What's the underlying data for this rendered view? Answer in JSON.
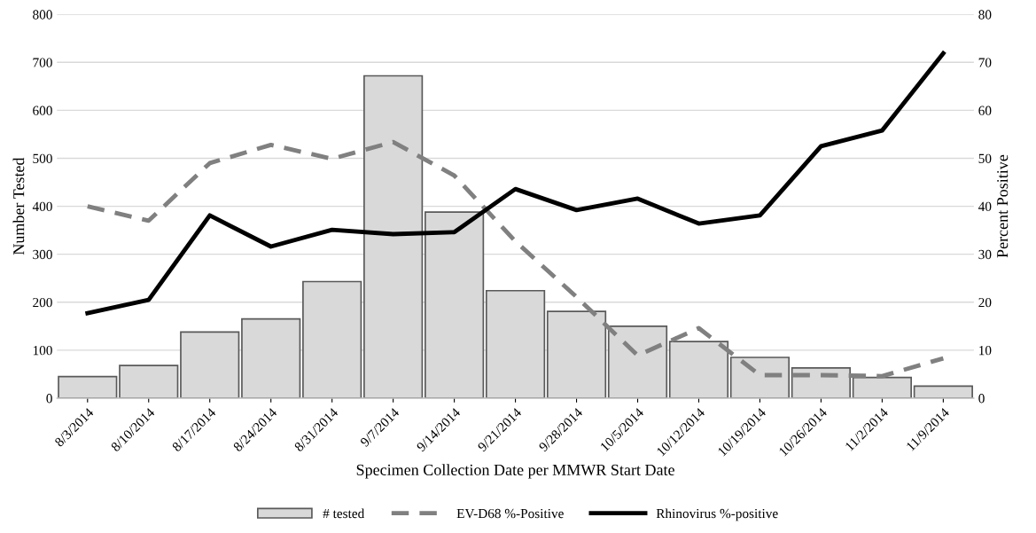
{
  "chart_data": {
    "type": "bar",
    "xlabel": "Specimen Collection Date per MMWR Start Date",
    "ylabel": "Number Tested",
    "y2label": "Percent Positive",
    "categories": [
      "8/3/2014",
      "8/10/2014",
      "8/17/2014",
      "8/24/2014",
      "8/31/2014",
      "9/7/2014",
      "9/14/2014",
      "9/21/2014",
      "9/28/2014",
      "10/5/2014",
      "10/12/2014",
      "10/19/2014",
      "10/26/2014",
      "11/2/2014",
      "11/9/2014"
    ],
    "series": [
      {
        "name": "# tested",
        "color": "#d9d9d9",
        "values": [
          45,
          68,
          138,
          165,
          243,
          672,
          388,
          224,
          181,
          150,
          118,
          85,
          63,
          43,
          25
        ]
      },
      {
        "name": "EV-D68 %-Positive",
        "type": "line",
        "axis": "y2",
        "line_style": "dashed",
        "color": "#808080",
        "values": [
          40,
          37,
          49,
          52.8,
          49.9,
          53.4,
          46.4,
          32.7,
          21.1,
          8.9,
          14.6,
          4.8,
          4.8,
          4.6,
          8.3
        ]
      },
      {
        "name": "Rhinovirus %-positive",
        "type": "line",
        "axis": "y2",
        "line_style": "solid",
        "color": "#000000",
        "values": [
          17.7,
          20.5,
          38.1,
          31.6,
          35.1,
          34.2,
          34.6,
          43.6,
          39.2,
          41.6,
          36.4,
          38.1,
          52.5,
          55.8,
          71.9
        ]
      }
    ],
    "ylim": [
      0,
      800
    ],
    "yticks": [
      0,
      100,
      200,
      300,
      400,
      500,
      600,
      700,
      800
    ],
    "y2lim": [
      0,
      80
    ],
    "y2ticks": [
      0,
      10,
      20,
      30,
      40,
      50,
      60,
      70,
      80
    ],
    "grid": "y",
    "legend": "bottom"
  }
}
